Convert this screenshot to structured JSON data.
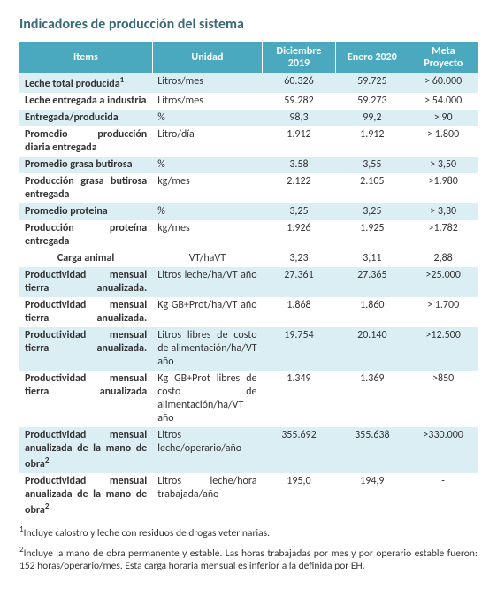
{
  "title": "Indicadores de producción del sistema",
  "columns": [
    "Items",
    "Unidad",
    "Diciembre 2019",
    "Enero 2020",
    "Meta Proyecto"
  ],
  "rows": [
    {
      "band": true,
      "items": "Leche total producida",
      "sup": "1",
      "unit": "Litros/mes",
      "dec": "60.326",
      "ene": "59.725",
      "meta": "> 60.000"
    },
    {
      "band": false,
      "items": "Leche entregada a industria",
      "unit": "Litros/mes",
      "dec": "59.282",
      "ene": "59.273",
      "meta": "> 54.000"
    },
    {
      "band": true,
      "items": "Entregada/producida",
      "unit": "%",
      "dec": "98,3",
      "ene": "99,2",
      "meta": "> 90"
    },
    {
      "band": false,
      "items": "Promedio producción diaria entregada",
      "unit": "Litro/día",
      "dec": "1.912",
      "ene": "1.912",
      "meta": "> 1.800"
    },
    {
      "band": true,
      "items": "Promedio grasa butirosa",
      "unit": "%",
      "dec": "3.58",
      "ene": "3,55",
      "meta": "> 3,50"
    },
    {
      "band": false,
      "items": "Producción grasa butirosa entregada",
      "unit": "kg/mes",
      "dec": "2.122",
      "ene": "2.105",
      "meta": ">1.980"
    },
    {
      "band": true,
      "items": "Promedio proteina",
      "unit": "%",
      "dec": "3,25",
      "ene": "3,25",
      "meta": "> 3,30"
    },
    {
      "band": false,
      "items": "Producción proteína entregada",
      "just": true,
      "unit": "kg/mes",
      "dec": "1.926",
      "ene": "1.925",
      "meta": ">1.782"
    },
    {
      "band": false,
      "section": true,
      "items": "Carga animal",
      "unit": "VT/haVT",
      "dec": "3,23",
      "ene": "3,11",
      "meta": "2,88"
    },
    {
      "band": true,
      "items": "Productividad mensual tierra anualizada.",
      "just": true,
      "unit": "Litros leche/ha/VT año",
      "unitjust": true,
      "dec": "27.361",
      "ene": "27.365",
      "meta": ">25.000"
    },
    {
      "band": false,
      "items": "Productividad mensual tierra anualizada.",
      "just": true,
      "unit": "Kg GB+Prot/ha/VT año",
      "unitjust": true,
      "dec": "1.868",
      "ene": "1.860",
      "meta": "> 1.700"
    },
    {
      "band": true,
      "items": "Productividad mensual tierra anualizada.",
      "just": true,
      "unit": "Litros libres de costo de alimentación/ha/VT año",
      "dec": "19.754",
      "ene": "20.140",
      "meta": ">12.500"
    },
    {
      "band": false,
      "items": "Productividad mensual tierra anualizada",
      "just": true,
      "unit": "Kg GB+Prot libres de costo de alimentación/ha/VT año",
      "dec": "1.349",
      "ene": "1.369",
      "meta": ">850"
    },
    {
      "band": true,
      "items": "Productividad mensual anualizada de la mano de obra",
      "sup": "2",
      "just": true,
      "unit": "Litros leche/operario/año",
      "dec": "355.692",
      "ene": "355.638",
      "meta": ">330.000"
    },
    {
      "band": false,
      "items": "Productividad mensual anualizada de la mano de obra",
      "sup": "2",
      "just": true,
      "unit": "Litros leche/hora trabajada/año",
      "unitjust": true,
      "dec": "195,0",
      "ene": "194,9",
      "meta": "-"
    }
  ],
  "footnote1_sup": "1",
  "footnote1": "Incluye calostro y leche con residuos de drogas veterinarias.",
  "footnote2_sup": "2",
  "footnote2": "Incluye la mano de obra permanente y estable. Las horas trabajadas por mes y por operario estable fueron: 152 horas/operario/mes. Esta carga horaria mensual es inferior a la definida por EH.",
  "colors": {
    "header_bg": "#4ba9bf",
    "header_text": "#ffffff",
    "band_bg": "#dbeef4",
    "title_color": "#3a6a7a",
    "body_text": "#333333"
  }
}
